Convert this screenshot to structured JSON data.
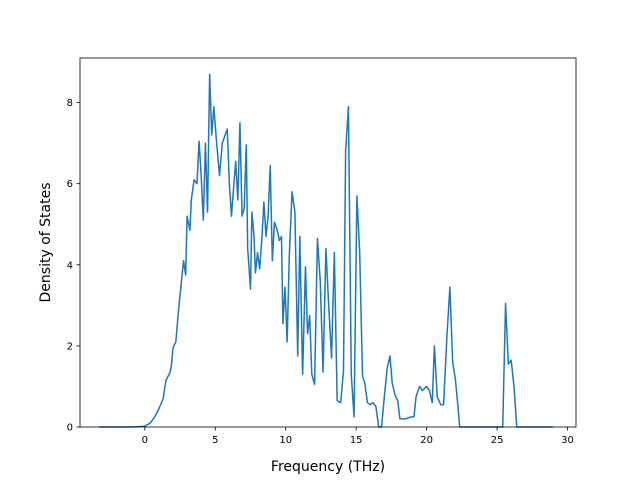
{
  "chart_data": {
    "type": "line",
    "xlabel": "Frequency (THz)",
    "ylabel": "Density of States",
    "xlim": [
      -4.6,
      30.6
    ],
    "ylim": [
      0,
      9.1
    ],
    "xticks": [
      0,
      5,
      10,
      15,
      20,
      25,
      30
    ],
    "yticks": [
      0,
      2,
      4,
      6,
      8
    ],
    "grid": false,
    "series": [
      {
        "color": "#1f77b4",
        "points": [
          [
            -3.2,
            0
          ],
          [
            -1.0,
            0
          ],
          [
            0.0,
            0.02
          ],
          [
            0.4,
            0.1
          ],
          [
            0.7,
            0.25
          ],
          [
            1.0,
            0.45
          ],
          [
            1.3,
            0.7
          ],
          [
            1.5,
            1.15
          ],
          [
            1.8,
            1.35
          ],
          [
            1.9,
            1.55
          ],
          [
            2.0,
            1.95
          ],
          [
            2.2,
            2.1
          ],
          [
            2.4,
            2.9
          ],
          [
            2.6,
            3.6
          ],
          [
            2.75,
            4.1
          ],
          [
            2.9,
            3.75
          ],
          [
            3.0,
            5.2
          ],
          [
            3.2,
            4.85
          ],
          [
            3.3,
            5.6
          ],
          [
            3.5,
            6.1
          ],
          [
            3.7,
            6.0
          ],
          [
            3.85,
            7.05
          ],
          [
            4.0,
            6.2
          ],
          [
            4.15,
            5.1
          ],
          [
            4.3,
            7.0
          ],
          [
            4.45,
            5.3
          ],
          [
            4.6,
            8.7
          ],
          [
            4.75,
            7.2
          ],
          [
            4.9,
            7.9
          ],
          [
            5.05,
            7.2
          ],
          [
            5.3,
            6.2
          ],
          [
            5.5,
            7.0
          ],
          [
            5.7,
            7.2
          ],
          [
            5.85,
            7.35
          ],
          [
            6.0,
            6.0
          ],
          [
            6.15,
            5.2
          ],
          [
            6.3,
            5.9
          ],
          [
            6.45,
            6.55
          ],
          [
            6.6,
            5.6
          ],
          [
            6.75,
            7.5
          ],
          [
            6.9,
            5.2
          ],
          [
            7.05,
            5.4
          ],
          [
            7.2,
            6.95
          ],
          [
            7.3,
            4.4
          ],
          [
            7.5,
            3.4
          ],
          [
            7.6,
            5.3
          ],
          [
            7.75,
            4.7
          ],
          [
            7.85,
            3.8
          ],
          [
            8.0,
            4.3
          ],
          [
            8.15,
            3.9
          ],
          [
            8.3,
            4.6
          ],
          [
            8.45,
            5.55
          ],
          [
            8.6,
            4.7
          ],
          [
            8.75,
            5.2
          ],
          [
            8.9,
            6.45
          ],
          [
            9.05,
            4.1
          ],
          [
            9.2,
            5.05
          ],
          [
            9.4,
            4.85
          ],
          [
            9.55,
            4.6
          ],
          [
            9.7,
            4.7
          ],
          [
            9.8,
            2.55
          ],
          [
            9.95,
            3.45
          ],
          [
            10.1,
            2.1
          ],
          [
            10.25,
            4.2
          ],
          [
            10.45,
            5.8
          ],
          [
            10.65,
            5.3
          ],
          [
            10.85,
            1.75
          ],
          [
            11.0,
            4.7
          ],
          [
            11.2,
            1.3
          ],
          [
            11.4,
            3.95
          ],
          [
            11.55,
            2.3
          ],
          [
            11.7,
            2.75
          ],
          [
            11.85,
            1.3
          ],
          [
            12.05,
            1.05
          ],
          [
            12.25,
            4.65
          ],
          [
            12.45,
            3.6
          ],
          [
            12.65,
            1.35
          ],
          [
            12.85,
            4.4
          ],
          [
            13.05,
            3.0
          ],
          [
            13.25,
            1.7
          ],
          [
            13.45,
            4.3
          ],
          [
            13.65,
            0.65
          ],
          [
            13.9,
            0.6
          ],
          [
            14.1,
            1.4
          ],
          [
            14.25,
            6.8
          ],
          [
            14.45,
            7.9
          ],
          [
            14.65,
            1.3
          ],
          [
            14.85,
            0.25
          ],
          [
            15.05,
            5.7
          ],
          [
            15.25,
            4.3
          ],
          [
            15.45,
            1.25
          ],
          [
            15.6,
            1.1
          ],
          [
            15.8,
            0.6
          ],
          [
            16.0,
            0.55
          ],
          [
            16.2,
            0.6
          ],
          [
            16.4,
            0.5
          ],
          [
            16.6,
            0.0
          ],
          [
            16.8,
            0.0
          ],
          [
            17.0,
            0.75
          ],
          [
            17.2,
            1.45
          ],
          [
            17.4,
            1.75
          ],
          [
            17.55,
            1.1
          ],
          [
            17.75,
            0.8
          ],
          [
            17.95,
            0.65
          ],
          [
            18.1,
            0.2
          ],
          [
            18.5,
            0.2
          ],
          [
            18.9,
            0.25
          ],
          [
            19.1,
            0.25
          ],
          [
            19.25,
            0.75
          ],
          [
            19.5,
            1.0
          ],
          [
            19.7,
            0.9
          ],
          [
            20.0,
            1.0
          ],
          [
            20.2,
            0.9
          ],
          [
            20.4,
            0.6
          ],
          [
            20.55,
            2.0
          ],
          [
            20.75,
            0.75
          ],
          [
            21.0,
            0.55
          ],
          [
            21.2,
            0.55
          ],
          [
            21.45,
            2.3
          ],
          [
            21.65,
            3.45
          ],
          [
            21.85,
            1.6
          ],
          [
            22.05,
            1.15
          ],
          [
            22.25,
            0.4
          ],
          [
            22.35,
            0.0
          ],
          [
            25.4,
            0.0
          ],
          [
            25.6,
            3.05
          ],
          [
            25.8,
            1.55
          ],
          [
            26.0,
            1.65
          ],
          [
            26.2,
            1.0
          ],
          [
            26.4,
            0.0
          ],
          [
            28.9,
            0.0
          ]
        ]
      }
    ]
  }
}
